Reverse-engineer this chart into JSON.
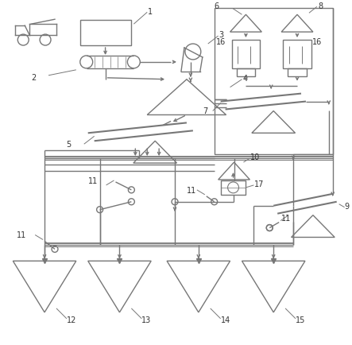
{
  "bg_color": "#ffffff",
  "lc": "#777777",
  "lw": 1.0,
  "tc": "#333333"
}
